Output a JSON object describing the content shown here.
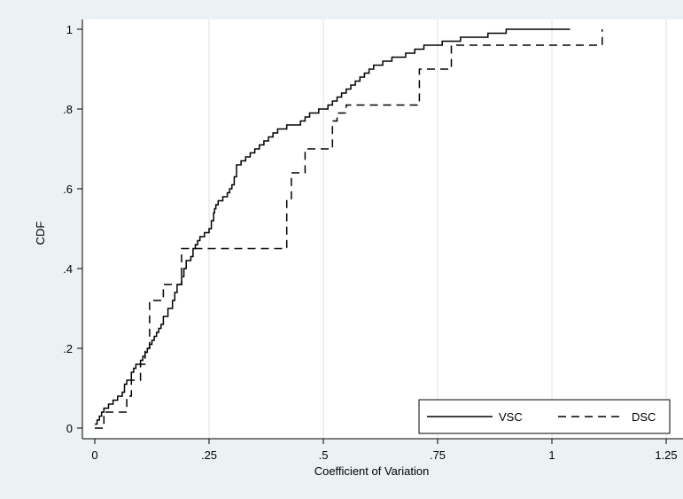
{
  "chart_data": {
    "type": "line",
    "title": "",
    "xlabel": "Coefficient of Variation",
    "ylabel": "CDF",
    "xlim": [
      0,
      1.25
    ],
    "ylim": [
      0,
      1
    ],
    "x_ticks": [
      0,
      0.25,
      0.5,
      0.75,
      1,
      1.25
    ],
    "x_tick_labels": [
      "0",
      ".25",
      ".5",
      ".75",
      "1",
      "1.25"
    ],
    "y_ticks": [
      0,
      0.2,
      0.4,
      0.6,
      0.8,
      1
    ],
    "y_tick_labels": [
      "0",
      ".2",
      ".4",
      ".6",
      ".8",
      "1"
    ],
    "grid": "vertical",
    "legend_position": "bottom-right",
    "series": [
      {
        "name": "VSC",
        "line_style": "solid",
        "color": "#000000",
        "x": [
          0,
          0.005,
          0.01,
          0.015,
          0.02,
          0.03,
          0.04,
          0.05,
          0.06,
          0.065,
          0.07,
          0.08,
          0.085,
          0.09,
          0.1,
          0.105,
          0.11,
          0.115,
          0.12,
          0.125,
          0.13,
          0.135,
          0.14,
          0.145,
          0.15,
          0.16,
          0.17,
          0.175,
          0.18,
          0.19,
          0.195,
          0.2,
          0.21,
          0.215,
          0.22,
          0.225,
          0.23,
          0.24,
          0.25,
          0.255,
          0.26,
          0.262,
          0.265,
          0.27,
          0.28,
          0.29,
          0.295,
          0.3,
          0.305,
          0.31,
          0.315,
          0.32,
          0.33,
          0.34,
          0.35,
          0.36,
          0.37,
          0.38,
          0.39,
          0.4,
          0.41,
          0.42,
          0.43,
          0.44,
          0.45,
          0.46,
          0.47,
          0.48,
          0.49,
          0.5,
          0.51,
          0.52,
          0.53,
          0.54,
          0.55,
          0.56,
          0.57,
          0.58,
          0.59,
          0.6,
          0.61,
          0.62,
          0.63,
          0.64,
          0.65,
          0.66,
          0.67,
          0.68,
          0.69,
          0.7,
          0.71,
          0.72,
          0.73,
          0.74,
          0.75,
          0.76,
          0.77,
          0.8,
          0.82,
          0.84,
          0.86,
          0.88,
          0.9,
          0.95,
          1.0,
          1.04
        ],
        "values": [
          0.01,
          0.02,
          0.03,
          0.04,
          0.05,
          0.06,
          0.07,
          0.08,
          0.09,
          0.11,
          0.12,
          0.14,
          0.15,
          0.16,
          0.17,
          0.18,
          0.19,
          0.2,
          0.21,
          0.22,
          0.23,
          0.24,
          0.25,
          0.26,
          0.28,
          0.3,
          0.32,
          0.34,
          0.36,
          0.38,
          0.4,
          0.42,
          0.43,
          0.45,
          0.46,
          0.47,
          0.48,
          0.49,
          0.5,
          0.52,
          0.54,
          0.55,
          0.56,
          0.57,
          0.58,
          0.59,
          0.6,
          0.61,
          0.63,
          0.66,
          0.66,
          0.67,
          0.68,
          0.69,
          0.7,
          0.71,
          0.72,
          0.73,
          0.74,
          0.75,
          0.75,
          0.76,
          0.76,
          0.76,
          0.77,
          0.78,
          0.79,
          0.79,
          0.8,
          0.8,
          0.81,
          0.82,
          0.83,
          0.84,
          0.85,
          0.86,
          0.87,
          0.88,
          0.89,
          0.9,
          0.91,
          0.91,
          0.92,
          0.92,
          0.93,
          0.93,
          0.93,
          0.94,
          0.94,
          0.95,
          0.95,
          0.96,
          0.96,
          0.96,
          0.96,
          0.97,
          0.97,
          0.98,
          0.98,
          0.98,
          0.99,
          0.99,
          1.0,
          1.0,
          1.0,
          1.0
        ]
      },
      {
        "name": "DSC",
        "line_style": "dashed",
        "color": "#000000",
        "x": [
          0,
          0.02,
          0.07,
          0.08,
          0.1,
          0.11,
          0.12,
          0.14,
          0.15,
          0.18,
          0.19,
          0.42,
          0.43,
          0.44,
          0.46,
          0.52,
          0.53,
          0.55,
          0.56,
          0.71,
          0.78,
          1.11
        ],
        "values": [
          0.0,
          0.04,
          0.08,
          0.12,
          0.16,
          0.2,
          0.32,
          0.32,
          0.36,
          0.36,
          0.45,
          0.57,
          0.64,
          0.64,
          0.7,
          0.77,
          0.79,
          0.81,
          0.81,
          0.9,
          0.96,
          1.0
        ]
      }
    ]
  }
}
